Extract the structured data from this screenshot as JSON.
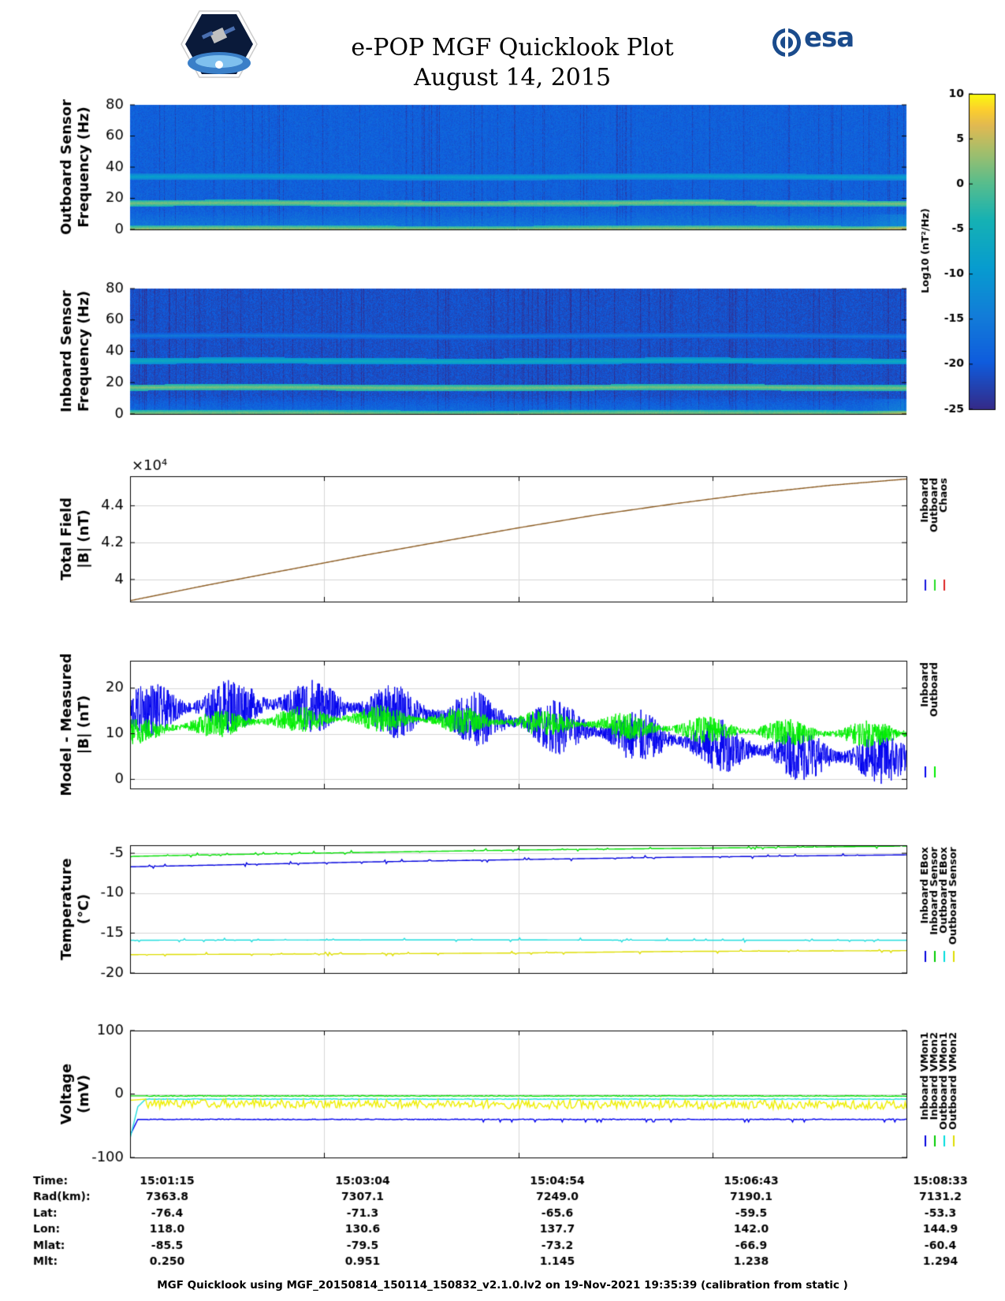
{
  "header": {
    "title_line1": "e-POP MGF Quicklook Plot",
    "title_line2": "August 14, 2015",
    "mission_logo": "satellite-mission-patch",
    "agency_logo": "esa"
  },
  "colorbar": {
    "label": "Log10 (nT²/Hz)",
    "ticks": [
      "10",
      "5",
      "0",
      "-5",
      "-10",
      "-15",
      "-20",
      "-25"
    ],
    "range": [
      -25,
      10
    ]
  },
  "time_axis": {
    "ticks": [
      "15:01:15",
      "15:03:04",
      "15:04:54",
      "15:06:43",
      "15:08:33"
    ]
  },
  "orbit_table": {
    "rows": [
      {
        "label": "Time:",
        "values": [
          "15:01:15",
          "15:03:04",
          "15:04:54",
          "15:06:43",
          "15:08:33"
        ]
      },
      {
        "label": "Rad(km):",
        "values": [
          "7363.8",
          "7307.1",
          "7249.0",
          "7190.1",
          "7131.2"
        ]
      },
      {
        "label": "Lat:",
        "values": [
          "-76.4",
          "-71.3",
          "-65.6",
          "-59.5",
          "-53.3"
        ]
      },
      {
        "label": "Lon:",
        "values": [
          "118.0",
          "130.6",
          "137.7",
          "142.0",
          "144.9"
        ]
      },
      {
        "label": "Mlat:",
        "values": [
          "-85.5",
          "-79.5",
          "-73.2",
          "-66.9",
          "-60.4"
        ]
      },
      {
        "label": "Mlt:",
        "values": [
          "0.250",
          "0.951",
          "1.145",
          "1.238",
          "1.294"
        ]
      }
    ]
  },
  "footer": "MGF Quicklook using MGF_20150814_150114_150832_v2.1.0.lv2 on 19-Nov-2021 19:35:39 (calibration from static )",
  "chart_data": [
    {
      "type": "heatmap",
      "ylabel": "Outboard Sensor Frequency (Hz)",
      "ylim": [
        0,
        80
      ],
      "yticks": [
        "0",
        "20",
        "40",
        "60",
        "80"
      ],
      "features": [
        {
          "name": "line at ~17 Hz",
          "freq_hz": 17,
          "level": 2
        },
        {
          "name": "line at ~34 Hz",
          "freq_hz": 34,
          "level": -8
        },
        {
          "name": "low-frequency band",
          "freq_hz": 0.5,
          "level": 3
        }
      ],
      "background_level": -19
    },
    {
      "type": "heatmap",
      "ylabel": "Inboard Sensor Frequency (Hz)",
      "ylim": [
        0,
        80
      ],
      "yticks": [
        "0",
        "20",
        "40",
        "60",
        "80"
      ],
      "features": [
        {
          "name": "line at ~17 Hz",
          "freq_hz": 17,
          "level": 2
        },
        {
          "name": "line at ~34 Hz",
          "freq_hz": 34,
          "level": -6
        },
        {
          "name": "faint line at ~50 Hz",
          "freq_hz": 50,
          "level": -15
        },
        {
          "name": "low-frequency band",
          "freq_hz": 0.5,
          "level": 2
        }
      ],
      "background_level": -21
    },
    {
      "type": "line",
      "ylabel": "Total Field |B| (nT)",
      "exponent_label": "×10⁴",
      "ylim": [
        3.88,
        4.56
      ],
      "yticks": [
        {
          "v": 4.0,
          "t": "4"
        },
        {
          "v": 4.2,
          "t": "4.2"
        },
        {
          "v": 4.4,
          "t": "4.4"
        }
      ],
      "legend": [
        "Inboard",
        "Outboard",
        "Chaos"
      ],
      "legend_colors": [
        "#1111dd",
        "#22dd22",
        "#dd2222"
      ],
      "series": [
        {
          "name": "Total field",
          "x": [
            0,
            0.1,
            0.2,
            0.3,
            0.4,
            0.5,
            0.6,
            0.7,
            0.8,
            0.9,
            1.0
          ],
          "values": [
            3.885,
            3.97,
            4.05,
            4.13,
            4.205,
            4.28,
            4.35,
            4.41,
            4.465,
            4.51,
            4.545
          ]
        }
      ]
    },
    {
      "type": "line",
      "ylabel": "Model - Measured |B| (nT)",
      "ylim": [
        -2,
        26
      ],
      "yticks": [
        {
          "v": 0,
          "t": "0"
        },
        {
          "v": 10,
          "t": "10"
        },
        {
          "v": 20,
          "t": "20"
        }
      ],
      "legend": [
        "Inboard",
        "Outboard"
      ],
      "legend_colors": [
        "#0000ee",
        "#00ee00"
      ],
      "series": [
        {
          "name": "Inboard",
          "color": "#0000ee",
          "x": [
            0,
            0.1,
            0.2,
            0.3,
            0.4,
            0.5,
            0.6,
            0.7,
            0.8,
            0.9,
            1.0
          ],
          "values": [
            15,
            16,
            16.5,
            15.5,
            14,
            12.5,
            10.5,
            8.5,
            6.5,
            5,
            4.5
          ],
          "amplitude": 6
        },
        {
          "name": "Outboard",
          "color": "#00ee00",
          "x": [
            0,
            0.1,
            0.2,
            0.3,
            0.4,
            0.5,
            0.6,
            0.7,
            0.8,
            0.9,
            1.0
          ],
          "values": [
            10.5,
            12,
            13,
            13.5,
            13,
            12.5,
            12,
            11,
            10.5,
            10,
            10
          ],
          "amplitude": 3
        }
      ]
    },
    {
      "type": "line",
      "ylabel": "Temperature (°C)",
      "ylim": [
        -20,
        -4
      ],
      "yticks": [
        {
          "v": -20,
          "t": "-20"
        },
        {
          "v": -15,
          "t": "-15"
        },
        {
          "v": -10,
          "t": "-10"
        },
        {
          "v": -5,
          "t": "-5"
        }
      ],
      "legend": [
        "Inboard EBox",
        "Inboard Sensor",
        "Outboard EBox",
        "Outboard Sensor"
      ],
      "legend_colors": [
        "#0000dd",
        "#00cc00",
        "#00dddd",
        "#dddd00"
      ],
      "series": [
        {
          "name": "Inboard EBox",
          "color": "#0000dd",
          "x": [
            0,
            0.1,
            0.3,
            0.5,
            0.7,
            1.0
          ],
          "values": [
            -6.7,
            -6.5,
            -6.1,
            -5.8,
            -5.5,
            -5.2
          ]
        },
        {
          "name": "Inboard Sensor",
          "color": "#00dd00",
          "x": [
            0,
            0.1,
            0.3,
            0.5,
            0.7,
            1.0
          ],
          "values": [
            -5.4,
            -5.2,
            -4.9,
            -4.6,
            -4.4,
            -4.1
          ]
        },
        {
          "name": "Outboard EBox",
          "color": "#22dddd",
          "x": [
            0,
            0.3,
            0.5,
            0.7,
            1.0
          ],
          "values": [
            -15.9,
            -15.85,
            -15.85,
            -15.9,
            -15.9
          ]
        },
        {
          "name": "Outboard Sensor",
          "color": "#dddd00",
          "x": [
            0,
            0.3,
            0.5,
            0.7,
            1.0
          ],
          "values": [
            -17.7,
            -17.6,
            -17.5,
            -17.3,
            -17.2
          ]
        }
      ]
    },
    {
      "type": "line",
      "ylabel": "Voltage (mV)",
      "ylim": [
        -100,
        100
      ],
      "yticks": [
        {
          "v": -100,
          "t": "-100"
        },
        {
          "v": 0,
          "t": "0"
        },
        {
          "v": 100,
          "t": "100"
        }
      ],
      "legend": [
        "Inboard VMon1",
        "Inboard VMon2",
        "Outboard VMon1",
        "Outboard VMon2"
      ],
      "legend_colors": [
        "#0000dd",
        "#00cc00",
        "#00dddd",
        "#dddd00"
      ],
      "series": [
        {
          "name": "Inboard VMon1",
          "color": "#0000ee",
          "x": [
            0,
            0.01,
            0.02,
            1.0
          ],
          "values": [
            -65,
            -40,
            -40,
            -40
          ]
        },
        {
          "name": "Inboard VMon2",
          "color": "#00dd00",
          "x": [
            0,
            0.02,
            1.0
          ],
          "values": [
            -3,
            -3,
            -3
          ]
        },
        {
          "name": "Outboard VMon1",
          "color": "#22dddd",
          "x": [
            0,
            0.01,
            0.02,
            1.0
          ],
          "values": [
            -70,
            -20,
            -8,
            -8
          ]
        },
        {
          "name": "Outboard VMon2",
          "color": "#eeee00",
          "x": [
            0,
            0.02,
            1.0
          ],
          "values": [
            -10,
            -8,
            -10
          ]
        }
      ]
    }
  ]
}
